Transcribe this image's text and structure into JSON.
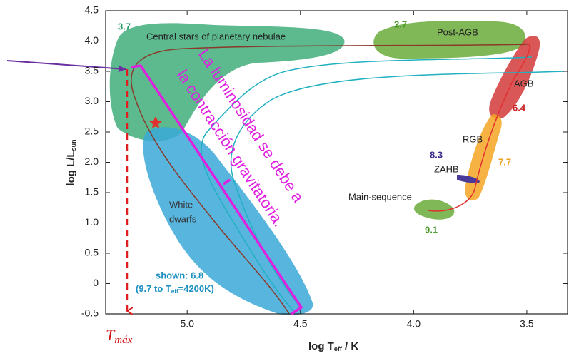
{
  "chart_data": {
    "type": "hr-diagram",
    "y_label": "log L/L",
    "y_label_sub": "sun",
    "x_label": "log T",
    "x_label_sub": "eff",
    "x_label_end": " / K",
    "xlim": [
      5.36,
      3.32
    ],
    "xticks": [
      {
        "value": 5,
        "label": "5.0"
      },
      4.5,
      {
        "value": 4,
        "label": "4.0"
      },
      3.5
    ],
    "ylim": [
      -0.5,
      4.5
    ],
    "yticks": [
      -0.5,
      0,
      0.5,
      {
        "value": 1,
        "label": "1.0"
      },
      1.5,
      {
        "value": 2,
        "label": "2.0"
      },
      2.5,
      {
        "value": 3,
        "label": "3.0"
      },
      3.5,
      {
        "value": 4,
        "label": "4.0"
      },
      4.5
    ],
    "regions": {
      "cspn": {
        "label": "Central stars of planetary nebulae",
        "number": 3.7
      },
      "post_agb": {
        "label": "Post-AGB",
        "number": 2.7
      },
      "agb": {
        "label": "AGB",
        "number": 6.4
      },
      "rgb": {
        "label": "RGB",
        "number": 7.7
      },
      "zahb": {
        "label": "ZAHB",
        "number": 8.3
      },
      "ms": {
        "label": "Main-sequence",
        "number": 9.1
      },
      "wd": {
        "label_1": "White",
        "label_2": "dwarfs",
        "shown": "shown: 6.8",
        "range_1": "(9.7 to T",
        "range_sub": "eff",
        "range_2": "=4200K)"
      }
    },
    "annotation": {
      "line_1": "La luminosidad se debe a",
      "line_2": "la contracción gravitatoria."
    },
    "tmax": {
      "main": "T",
      "sub": "máx"
    }
  }
}
